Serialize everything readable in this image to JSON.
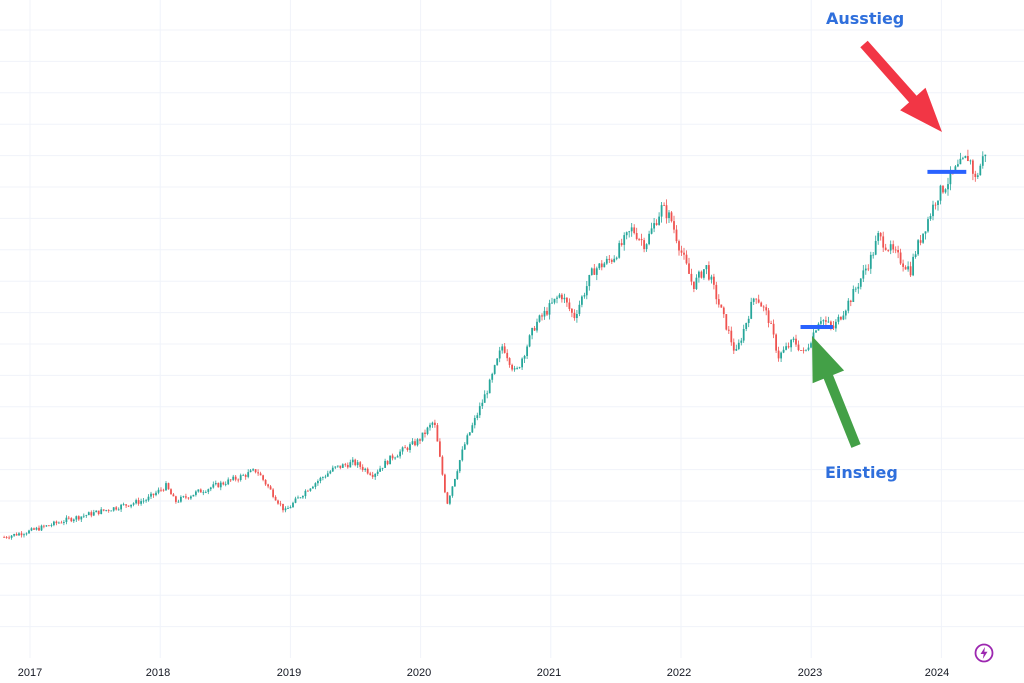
{
  "chart_data": {
    "type": "candlestick",
    "title": "",
    "xlabel": "",
    "ylabel": "",
    "x_ticks": [
      "2017",
      "2018",
      "2019",
      "2020",
      "2021",
      "2022",
      "2023",
      "2024"
    ],
    "grid": true,
    "colors": {
      "up": "#26a69a",
      "down": "#ef5350",
      "entry_line": "#2962ff",
      "entry_arrow": "#43a047",
      "exit_arrow": "#f23645",
      "label": "#2f6fdc"
    },
    "series": [
      {
        "name": "",
        "points": [
          {
            "x": 2016.8,
            "y": 100
          },
          {
            "x": 2017.0,
            "y": 103
          },
          {
            "x": 2017.3,
            "y": 109
          },
          {
            "x": 2017.6,
            "y": 114
          },
          {
            "x": 2017.9,
            "y": 119
          },
          {
            "x": 2018.05,
            "y": 126
          },
          {
            "x": 2018.12,
            "y": 118
          },
          {
            "x": 2018.3,
            "y": 123
          },
          {
            "x": 2018.6,
            "y": 130
          },
          {
            "x": 2018.75,
            "y": 134
          },
          {
            "x": 2018.97,
            "y": 113
          },
          {
            "x": 2019.15,
            "y": 125
          },
          {
            "x": 2019.35,
            "y": 135
          },
          {
            "x": 2019.5,
            "y": 138
          },
          {
            "x": 2019.65,
            "y": 132
          },
          {
            "x": 2019.8,
            "y": 141
          },
          {
            "x": 2020.0,
            "y": 149
          },
          {
            "x": 2020.12,
            "y": 159
          },
          {
            "x": 2020.22,
            "y": 117
          },
          {
            "x": 2020.35,
            "y": 146
          },
          {
            "x": 2020.55,
            "y": 178
          },
          {
            "x": 2020.65,
            "y": 198
          },
          {
            "x": 2020.75,
            "y": 183
          },
          {
            "x": 2020.9,
            "y": 208
          },
          {
            "x": 2021.1,
            "y": 224
          },
          {
            "x": 2021.2,
            "y": 212
          },
          {
            "x": 2021.35,
            "y": 236
          },
          {
            "x": 2021.5,
            "y": 242
          },
          {
            "x": 2021.65,
            "y": 257
          },
          {
            "x": 2021.75,
            "y": 249
          },
          {
            "x": 2021.88,
            "y": 268
          },
          {
            "x": 2021.95,
            "y": 262
          },
          {
            "x": 2022.02,
            "y": 247
          },
          {
            "x": 2022.12,
            "y": 228
          },
          {
            "x": 2022.22,
            "y": 238
          },
          {
            "x": 2022.38,
            "y": 207
          },
          {
            "x": 2022.45,
            "y": 193
          },
          {
            "x": 2022.6,
            "y": 224
          },
          {
            "x": 2022.7,
            "y": 212
          },
          {
            "x": 2022.78,
            "y": 192
          },
          {
            "x": 2022.9,
            "y": 200
          },
          {
            "x": 2022.98,
            "y": 193
          },
          {
            "x": 2023.1,
            "y": 212
          },
          {
            "x": 2023.2,
            "y": 206
          },
          {
            "x": 2023.35,
            "y": 223
          },
          {
            "x": 2023.5,
            "y": 243
          },
          {
            "x": 2023.55,
            "y": 253
          },
          {
            "x": 2023.65,
            "y": 246
          },
          {
            "x": 2023.8,
            "y": 236
          },
          {
            "x": 2023.83,
            "y": 244
          },
          {
            "x": 2024.0,
            "y": 273
          },
          {
            "x": 2024.15,
            "y": 287
          },
          {
            "x": 2024.25,
            "y": 294
          },
          {
            "x": 2024.3,
            "y": 282
          },
          {
            "x": 2024.38,
            "y": 297
          }
        ]
      }
    ],
    "markers": [
      {
        "label": "Einstieg",
        "x_start": 2022.95,
        "x_end": 2023.2,
        "y": 207
      },
      {
        "label": "Ausstieg",
        "x_start": 2023.93,
        "x_end": 2024.23,
        "y": 286
      }
    ],
    "annotations": {
      "entry": "Einstieg",
      "exit": "Ausstieg"
    }
  },
  "badge": {
    "icon": "lightning-icon",
    "color": "#9c27b0"
  }
}
